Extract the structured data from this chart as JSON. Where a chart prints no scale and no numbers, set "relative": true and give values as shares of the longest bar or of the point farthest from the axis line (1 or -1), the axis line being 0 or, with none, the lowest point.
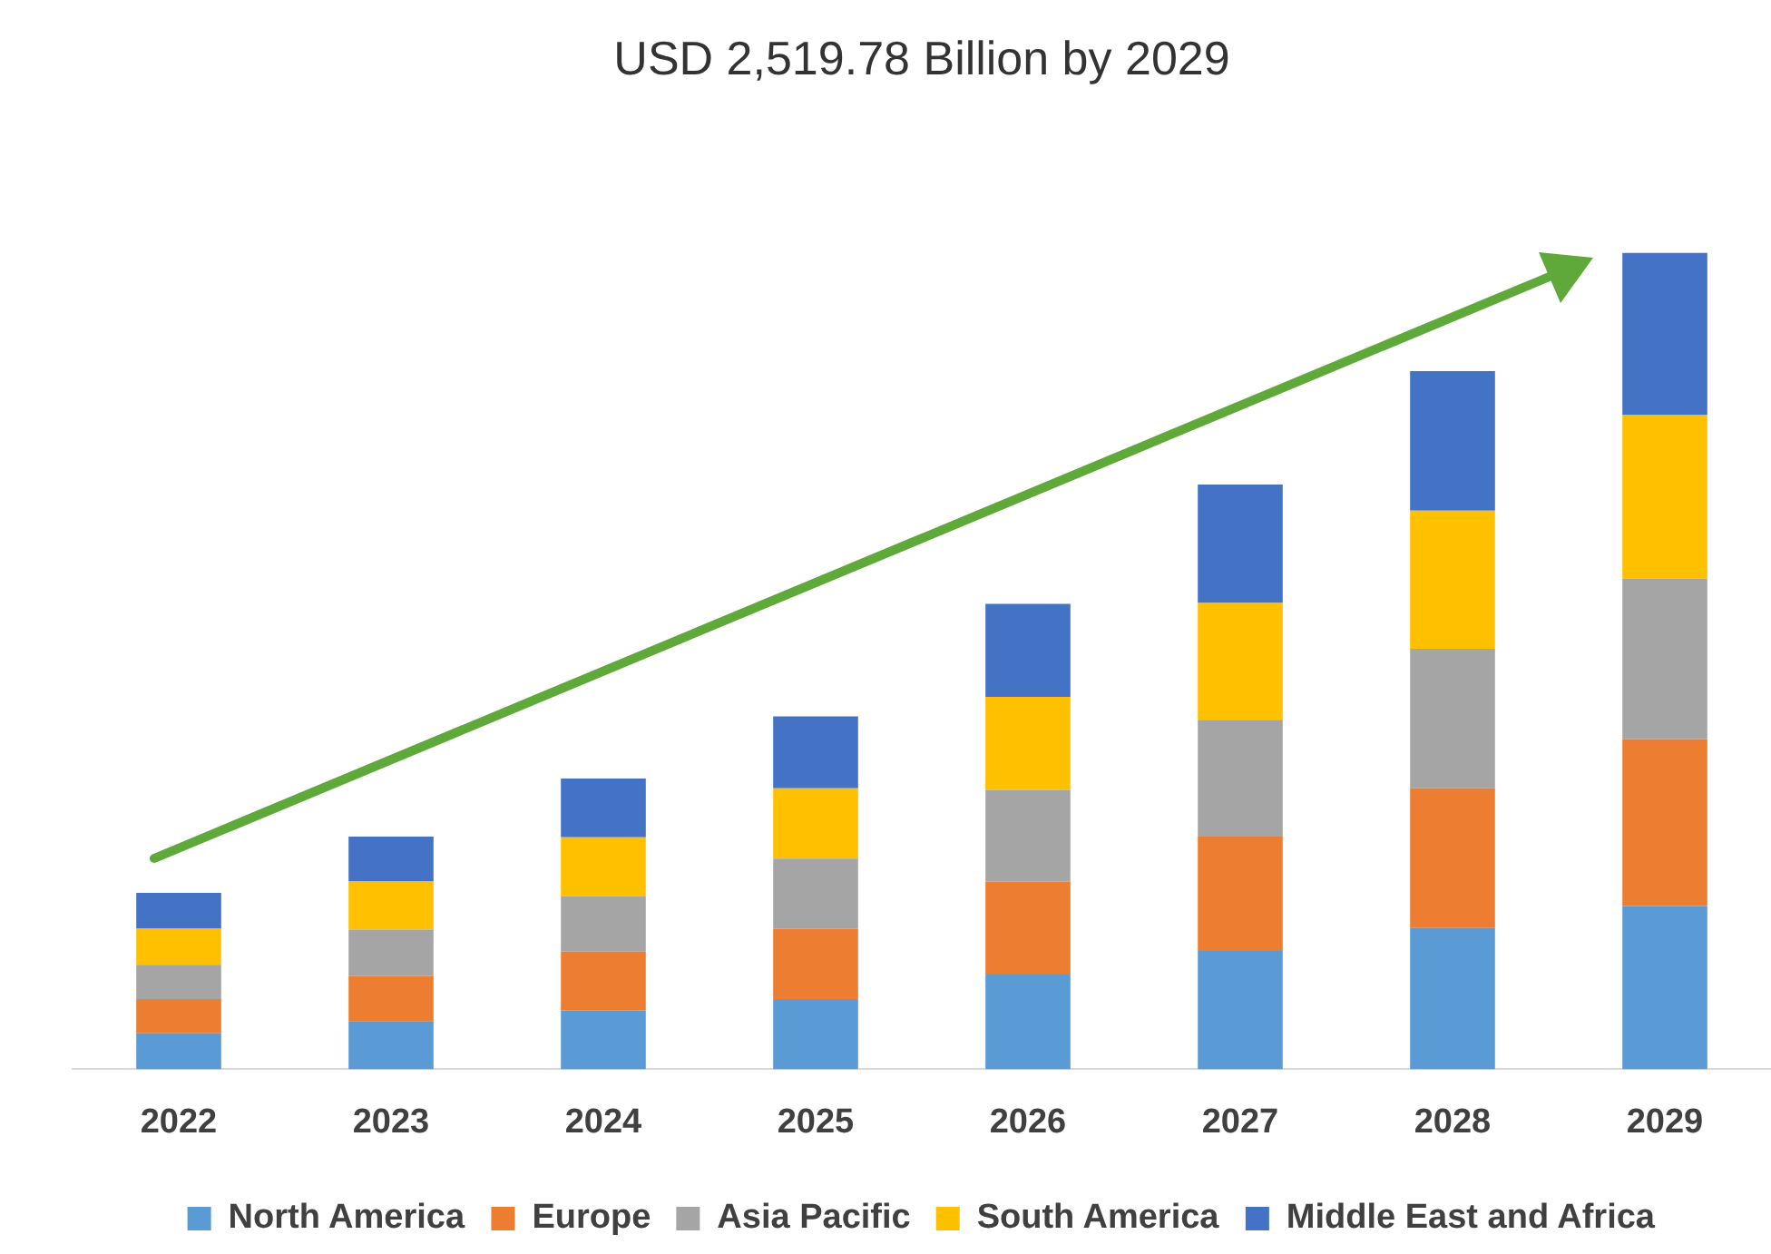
{
  "chart_data": {
    "type": "bar",
    "title": "USD 2,519.78 Billion by 2029",
    "categories": [
      "2022",
      "2023",
      "2024",
      "2025",
      "2026",
      "2027",
      "2028",
      "2029"
    ],
    "stacked": true,
    "relative": true,
    "legend": "bottom",
    "series": [
      {
        "name": "North America",
        "color": "#5b9bd5",
        "values": [
          0.044,
          0.059,
          0.072,
          0.086,
          0.116,
          0.145,
          0.173,
          0.2
        ]
      },
      {
        "name": "Europe",
        "color": "#ed7d31",
        "values": [
          0.042,
          0.055,
          0.072,
          0.086,
          0.114,
          0.14,
          0.171,
          0.204
        ]
      },
      {
        "name": "Asia Pacific",
        "color": "#a5a5a5",
        "values": [
          0.042,
          0.057,
          0.068,
          0.086,
          0.112,
          0.143,
          0.171,
          0.197
        ]
      },
      {
        "name": "South America",
        "color": "#ffc000",
        "values": [
          0.044,
          0.059,
          0.072,
          0.086,
          0.114,
          0.143,
          0.169,
          0.2
        ]
      },
      {
        "name": "Middle East and Africa",
        "color": "#4472c4",
        "values": [
          0.044,
          0.055,
          0.072,
          0.088,
          0.114,
          0.145,
          0.171,
          0.199
        ]
      }
    ]
  }
}
